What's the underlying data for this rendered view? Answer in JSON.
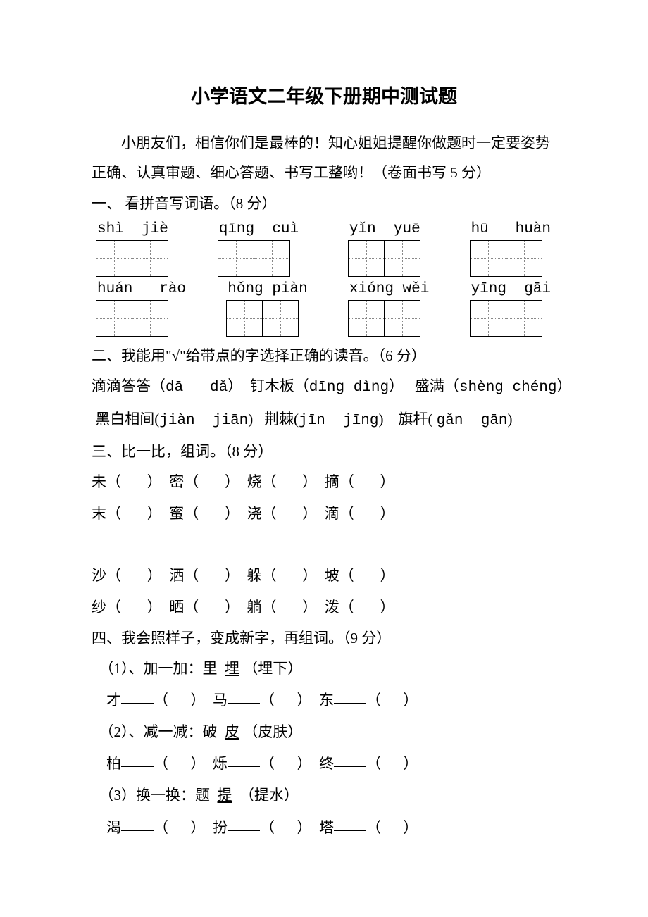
{
  "title": "小学语文二年级下册期中测试题",
  "intro": "小朋友们，相信你们是最棒的！知心姐姐提醒你做题时一定要姿势正确、认真审题、细心答题、书写工整哟！（卷面书写 5 分）",
  "q1": {
    "heading": "一、 看拼音写词语。（8 分）",
    "row1": [
      "shì  jiè",
      "qīnɡ  cuì",
      "yǐn  yuē",
      "hū   huàn"
    ],
    "row2": [
      "huán   rào",
      "hǒnɡ piàn",
      "xiónɡ wěi",
      "yīnɡ  ɡāi"
    ]
  },
  "q2": {
    "heading": "二、我能用\"√\"给带点的字选择正确的读音。（6 分）",
    "line1_a": "滴滴答答（",
    "line1_p1": "dā   dǎ",
    "line1_b": "）  钉木板（",
    "line1_p2": "dīnɡ dìnɡ",
    "line1_c": "）   盛满（",
    "line1_p3": "shènɡ chénɡ",
    "line1_d": "）",
    "line2_a": " 黑白相间(",
    "line2_p1": "jiàn  jiān",
    "line2_b": ")   荆棘(",
    "line2_p2": "jīn  jīnɡ",
    "line2_c": ")    旗杆( ",
    "line2_p3": "ɡǎn  ɡān",
    "line2_d": ")"
  },
  "q3": {
    "heading": "三、比一比，组词。（8 分）",
    "r1": "未（       ）  密（       ）  烧（       ）  摘（       ）",
    "r2": "末（       ）  蜜（       ）  浇（       ）  滴（       ）",
    "r3": "沙（       ）  洒（       ）  躲（       ）  坡（       ）",
    "r4": "纱（       ）  晒（       ）  躺（       ）  泼（       ）"
  },
  "q4": {
    "heading": "四、我会照样子，变成新字，再组词。（9 分）",
    "l1a": "  （1）、加一加：里  ",
    "l1u": "埋",
    "l1b": " （埋下）",
    "l2": [
      "    才",
      "（      ）  马",
      "（      ）  东",
      "（      ）"
    ],
    "l3a": "  （2）、减一减：破  ",
    "l3u": "皮",
    "l3b": " （皮肤）",
    "l4": [
      "    柏",
      "（      ）  烁",
      "（      ）  终",
      "（      ）"
    ],
    "l5a": "  （3）换一换：题  ",
    "l5u": "提",
    "l5b": "  （提水）",
    "l6": [
      "    渴",
      "（      ）  扮",
      "（      ）  塔",
      "（      ）"
    ]
  },
  "colors": {
    "text": "#000000",
    "bg": "#ffffff",
    "dotted": "#888888"
  },
  "fonts": {
    "body": "SimSun",
    "mono": "Courier New",
    "title_size": 27,
    "body_size": 21
  }
}
